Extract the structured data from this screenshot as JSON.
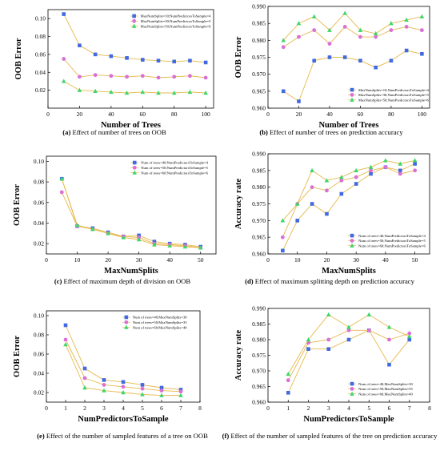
{
  "colors": {
    "blue": "#4169e1",
    "magenta": "#da70d6",
    "green": "#3cd66a",
    "axis": "#000000",
    "connector": "#e6b84a"
  },
  "chart_data": [
    {
      "id": "a",
      "type": "line",
      "caption_prefix": "(a)",
      "caption": "Effect of number of trees on OOB",
      "xlabel": "Number of Trees",
      "ylabel": "OOB Error",
      "xlim": [
        0,
        105
      ],
      "ylim": [
        0,
        0.11
      ],
      "xticks": [
        0,
        20,
        40,
        60,
        80,
        100
      ],
      "yticks": [
        0.02,
        0.04,
        0.06,
        0.08,
        0.1
      ],
      "xtick_labels": [
        "0",
        "20",
        "40",
        "60",
        "80",
        "100"
      ],
      "ytick_labels": [
        "0.02",
        "0.04",
        "0.06",
        "0.08",
        "0.10"
      ],
      "legend": "top-right",
      "x": [
        10,
        20,
        30,
        40,
        50,
        60,
        70,
        80,
        90,
        100
      ],
      "series": [
        {
          "name": "MaxNumSplits=10;NumPredictorsToSample=4",
          "marker": "square",
          "color": "#4169e1",
          "values": [
            0.105,
            0.07,
            0.06,
            0.058,
            0.056,
            0.054,
            0.053,
            0.052,
            0.053,
            0.051
          ]
        },
        {
          "name": "MaxNumSplits=30;NumPredictorsToSample=5",
          "marker": "circle",
          "color": "#da70d6",
          "values": [
            0.055,
            0.035,
            0.037,
            0.036,
            0.035,
            0.036,
            0.034,
            0.035,
            0.036,
            0.034
          ]
        },
        {
          "name": "MaxNumSplits=50;NumPredictorsToSample=6",
          "marker": "triangle",
          "color": "#3cd66a",
          "values": [
            0.03,
            0.02,
            0.019,
            0.018,
            0.017,
            0.018,
            0.017,
            0.017,
            0.018,
            0.017
          ]
        }
      ]
    },
    {
      "id": "b",
      "type": "line",
      "caption_prefix": "(b)",
      "caption": "Effect of number of trees on prediction accuracy",
      "xlabel": "Number of Trees",
      "ylabel": "OOB Error",
      "xlim": [
        0,
        105
      ],
      "ylim": [
        0.96,
        0.99
      ],
      "xticks": [
        0,
        20,
        40,
        60,
        80,
        100
      ],
      "yticks": [
        0.96,
        0.965,
        0.97,
        0.975,
        0.98,
        0.985,
        0.99
      ],
      "xtick_labels": [
        "0",
        "20",
        "40",
        "60",
        "80",
        "100"
      ],
      "ytick_labels": [
        "0.960",
        "0.965",
        "0.970",
        "0.975",
        "0.980",
        "0.985",
        "0.990"
      ],
      "legend": "bottom-right",
      "x": [
        10,
        20,
        30,
        40,
        50,
        60,
        70,
        80,
        90,
        100
      ],
      "series": [
        {
          "name": "MaxNumSplits=10;NumPredictorsToSample=4",
          "marker": "square",
          "color": "#4169e1",
          "values": [
            0.965,
            0.962,
            0.974,
            0.975,
            0.975,
            0.974,
            0.972,
            0.974,
            0.977,
            0.976
          ]
        },
        {
          "name": "MaxNumSplits=30;NumPredictorsToSample=5",
          "marker": "circle",
          "color": "#da70d6",
          "values": [
            0.978,
            0.981,
            0.983,
            0.979,
            0.984,
            0.981,
            0.981,
            0.983,
            0.984,
            0.983
          ]
        },
        {
          "name": "MaxNumSplits=50;NumPredictorsToSample=6",
          "marker": "triangle",
          "color": "#3cd66a",
          "values": [
            0.98,
            0.985,
            0.987,
            0.983,
            0.988,
            0.983,
            0.982,
            0.985,
            0.986,
            0.987
          ]
        }
      ]
    },
    {
      "id": "c",
      "type": "line",
      "caption_prefix": "(c)",
      "caption": "Effect of maximum depth of division on OOB",
      "xlabel": "MaxNumSplits",
      "ylabel": "OOB Error",
      "xlim": [
        0,
        55
      ],
      "ylim": [
        0.01,
        0.105
      ],
      "xticks": [
        0,
        10,
        20,
        30,
        40,
        50
      ],
      "yticks": [
        0.02,
        0.04,
        0.06,
        0.08,
        0.1
      ],
      "xtick_labels": [
        "0",
        "10",
        "20",
        "30",
        "40",
        "50"
      ],
      "ytick_labels": [
        "0.02",
        "0.04",
        "0.06",
        "0.08",
        "0.10"
      ],
      "legend": "top-right",
      "x": [
        5,
        10,
        15,
        20,
        25,
        30,
        35,
        40,
        45,
        50
      ],
      "series": [
        {
          "name": "Num of trees=40;NumPredictorsToSample=4",
          "marker": "square",
          "color": "#4169e1",
          "values": [
            0.083,
            0.037,
            0.035,
            0.031,
            0.027,
            0.028,
            0.022,
            0.02,
            0.019,
            0.017
          ]
        },
        {
          "name": "Num of trees=50;NumPredictorsToSample=5",
          "marker": "circle",
          "color": "#da70d6",
          "values": [
            0.07,
            0.037,
            0.034,
            0.03,
            0.027,
            0.026,
            0.02,
            0.019,
            0.018,
            0.016
          ]
        },
        {
          "name": "Num of trees=60;NumPredictorsToSample=6",
          "marker": "triangle",
          "color": "#3cd66a",
          "values": [
            0.083,
            0.038,
            0.034,
            0.03,
            0.026,
            0.024,
            0.019,
            0.018,
            0.017,
            0.016
          ]
        }
      ]
    },
    {
      "id": "d",
      "type": "line",
      "caption_prefix": "(d)",
      "caption": "Effect of maximum splitting depth on prediction accuracy",
      "xlabel": "MaxNumSplits",
      "ylabel": "Accuracy rate",
      "xlim": [
        0,
        55
      ],
      "ylim": [
        0.96,
        0.99
      ],
      "xticks": [
        0,
        10,
        20,
        30,
        40,
        50
      ],
      "yticks": [
        0.96,
        0.965,
        0.97,
        0.975,
        0.98,
        0.985,
        0.99
      ],
      "xtick_labels": [
        "0",
        "10",
        "20",
        "30",
        "40",
        "50"
      ],
      "ytick_labels": [
        "0.960",
        "0.965",
        "0.970",
        "0.975",
        "0.980",
        "0.985",
        "0.990"
      ],
      "legend": "bottom-right",
      "x": [
        5,
        10,
        15,
        20,
        25,
        30,
        35,
        40,
        45,
        50
      ],
      "series": [
        {
          "name": "Num of trees=40;NumPredictorsToSample=4",
          "marker": "square",
          "color": "#4169e1",
          "values": [
            0.961,
            0.97,
            0.975,
            0.972,
            0.978,
            0.981,
            0.984,
            0.986,
            0.985,
            0.987
          ]
        },
        {
          "name": "Num of trees=50;NumPredictorsToSample=5",
          "marker": "circle",
          "color": "#da70d6",
          "values": [
            0.965,
            0.975,
            0.98,
            0.979,
            0.982,
            0.983,
            0.985,
            0.986,
            0.984,
            0.985
          ]
        },
        {
          "name": "Num of trees=60;NumPredictorsToSample=6",
          "marker": "triangle",
          "color": "#3cd66a",
          "values": [
            0.97,
            0.975,
            0.985,
            0.982,
            0.983,
            0.985,
            0.986,
            0.988,
            0.987,
            0.988
          ]
        }
      ]
    },
    {
      "id": "e",
      "type": "line",
      "caption_prefix": "(e)",
      "caption": "Effect of the number of sampled features of a tree on OOB",
      "xlabel": "NumPredictorsToSample",
      "ylabel": "OOB Error",
      "xlim": [
        0,
        8
      ],
      "ylim": [
        0.01,
        0.105
      ],
      "xticks": [
        0,
        1,
        2,
        3,
        4,
        5,
        6,
        7,
        8
      ],
      "yticks": [
        0.02,
        0.04,
        0.06,
        0.08,
        0.1
      ],
      "xtick_labels": [
        "0",
        "1",
        "2",
        "3",
        "4",
        "5",
        "6",
        "7",
        "8"
      ],
      "ytick_labels": [
        "0.02",
        "0.04",
        "0.06",
        "0.08",
        "0.10"
      ],
      "legend": "top-right",
      "x": [
        1,
        2,
        3,
        4,
        5,
        6,
        7
      ],
      "series": [
        {
          "name": "Num of trees=40;MaxNumSplits=30",
          "marker": "square",
          "color": "#4169e1",
          "values": [
            0.09,
            0.045,
            0.033,
            0.031,
            0.028,
            0.025,
            0.023
          ]
        },
        {
          "name": "Num of trees=50;MaxNumSplits=35",
          "marker": "circle",
          "color": "#da70d6",
          "values": [
            0.075,
            0.035,
            0.028,
            0.026,
            0.024,
            0.022,
            0.021
          ]
        },
        {
          "name": "Num of trees=60;MaxNumSplits=40",
          "marker": "triangle",
          "color": "#3cd66a",
          "values": [
            0.07,
            0.025,
            0.022,
            0.02,
            0.018,
            0.017,
            0.017
          ]
        }
      ]
    },
    {
      "id": "f",
      "type": "line",
      "caption_prefix": "(f)",
      "caption": "Effect of the number of sampled features of the tree on prediction accuracy",
      "xlabel": "NumPredictorsToSample",
      "ylabel": "Accuracy rate",
      "xlim": [
        0,
        8
      ],
      "ylim": [
        0.96,
        0.99
      ],
      "xticks": [
        0,
        1,
        2,
        3,
        4,
        5,
        6,
        7,
        8
      ],
      "yticks": [
        0.96,
        0.965,
        0.97,
        0.975,
        0.98,
        0.985,
        0.99
      ],
      "xtick_labels": [
        "0",
        "1",
        "2",
        "3",
        "4",
        "5",
        "6",
        "7",
        "8"
      ],
      "ytick_labels": [
        "0.960",
        "0.965",
        "0.970",
        "0.975",
        "0.980",
        "0.985",
        "0.990"
      ],
      "legend": "bottom-right",
      "x": [
        1,
        2,
        3,
        4,
        5,
        6,
        7
      ],
      "series": [
        {
          "name": "Num of trees=40;MaxNumSplits=30",
          "marker": "square",
          "color": "#4169e1",
          "values": [
            0.963,
            0.977,
            0.977,
            0.98,
            0.983,
            0.972,
            0.98
          ]
        },
        {
          "name": "Num of trees=50;MaxNumSplits=35",
          "marker": "circle",
          "color": "#da70d6",
          "values": [
            0.967,
            0.979,
            0.98,
            0.983,
            0.983,
            0.98,
            0.982
          ]
        },
        {
          "name": "Num of trees=60;MaxNumSplits=40",
          "marker": "triangle",
          "color": "#3cd66a",
          "values": [
            0.969,
            0.98,
            0.988,
            0.984,
            0.988,
            0.984,
            0.981
          ]
        }
      ]
    }
  ]
}
